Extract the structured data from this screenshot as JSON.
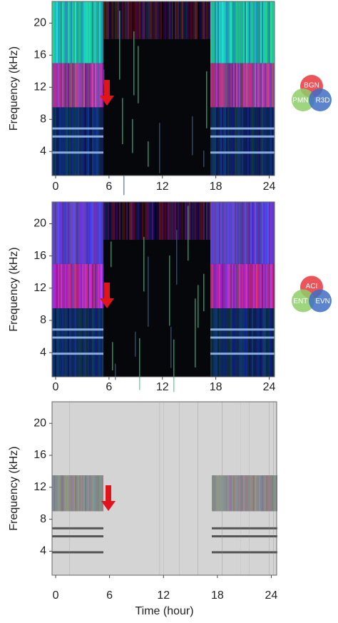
{
  "chart_data": [
    {
      "type": "spectrogram",
      "ylabel": "Frequency (kHz)",
      "xlim": [
        -0.4,
        24.6
      ],
      "ylim": [
        1,
        22.7
      ],
      "xticks": [
        0,
        6,
        12,
        18,
        24
      ],
      "yticks": [
        4,
        8,
        12,
        16,
        20
      ],
      "legend": {
        "labels": [
          "BGN",
          "PMN",
          "R3D"
        ],
        "colors": [
          "#e8373d",
          "#8fce6a",
          "#3f6fc4"
        ]
      },
      "palette": "color"
    },
    {
      "type": "spectrogram",
      "ylabel": "Frequency (kHz)",
      "xlim": [
        -0.4,
        24.6
      ],
      "ylim": [
        1,
        22.7
      ],
      "xticks": [
        0,
        6,
        12,
        18,
        24
      ],
      "yticks": [
        4,
        8,
        12,
        16,
        20
      ],
      "legend": {
        "labels": [
          "ACI",
          "ENT",
          "EVN"
        ],
        "colors": [
          "#e8373d",
          "#8fce6a",
          "#3f6fc4"
        ]
      },
      "palette": "color2"
    },
    {
      "type": "spectrogram",
      "ylabel": "Frequency (kHz)",
      "xlabel": "Time (hour)",
      "xlim": [
        -0.4,
        24.6
      ],
      "ylim": [
        1,
        22.7
      ],
      "xticks": [
        0,
        6,
        12,
        18,
        24
      ],
      "yticks": [
        4,
        8,
        12,
        16,
        20
      ],
      "palette": "gray"
    }
  ]
}
